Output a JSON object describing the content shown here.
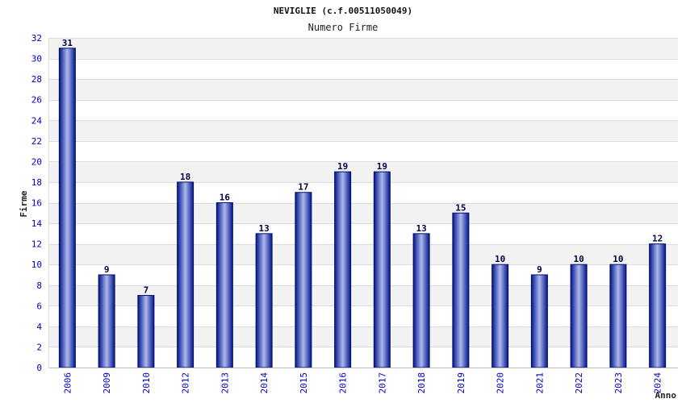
{
  "chart_data": {
    "type": "bar",
    "title": "NEVIGLIE (c.f.00511050049)",
    "subtitle": "Numero Firme",
    "xlabel": "Anno",
    "ylabel": "Firme",
    "ylim": [
      0,
      32
    ],
    "y_ticks": [
      0,
      2,
      4,
      6,
      8,
      10,
      12,
      14,
      16,
      18,
      20,
      22,
      24,
      26,
      28,
      30,
      32
    ],
    "categories": [
      "2006",
      "2009",
      "2010",
      "2012",
      "2013",
      "2014",
      "2015",
      "2016",
      "2017",
      "2018",
      "2019",
      "2020",
      "2021",
      "2022",
      "2023",
      "2024"
    ],
    "values": [
      31,
      9,
      7,
      18,
      16,
      13,
      17,
      19,
      19,
      13,
      15,
      10,
      9,
      10,
      10,
      12
    ],
    "data_labels": true,
    "grid": "horizontal alternating bands",
    "colors": {
      "bar_dark": "#00158a",
      "bar_light": "#aeb8ee",
      "band": "#f2f2f2",
      "tick_text": "#0000cc"
    }
  }
}
